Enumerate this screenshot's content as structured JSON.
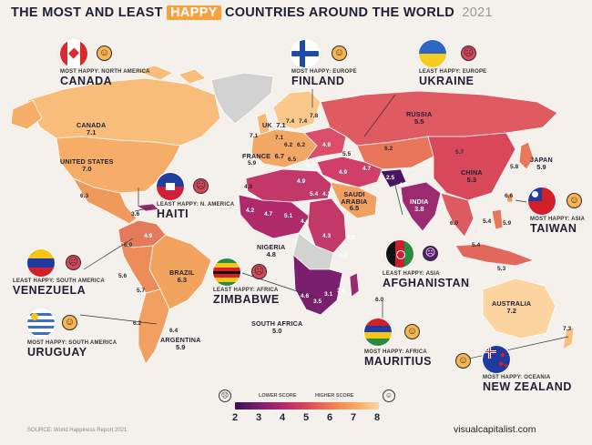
{
  "title": {
    "part1": "THE MOST AND LEAST",
    "highlight": "HAPPY",
    "part2": "COUNTRIES AROUND THE WORLD",
    "year": "2021"
  },
  "map_labels": {
    "canada": {
      "name": "CANADA",
      "score": "7.1"
    },
    "usa": {
      "name": "UNITED STATES",
      "score": "7.0"
    },
    "russia": {
      "name": "RUSSIA",
      "score": "5.5"
    },
    "china": {
      "name": "CHINA",
      "score": "5.3"
    },
    "japan": {
      "name": "JAPAN",
      "score": "5.9"
    },
    "india": {
      "name": "INDIA",
      "score": "3.8"
    },
    "saudi": {
      "name": "SAUDI ARABIA",
      "score": "6.5"
    },
    "nigeria": {
      "name": "NIGERIA",
      "score": "4.8"
    },
    "south_africa": {
      "name": "SOUTH AFRICA",
      "score": "5.0"
    },
    "brazil": {
      "name": "BRAZIL",
      "score": "6.3"
    },
    "argentina": {
      "name": "ARGENTINA",
      "score": "5.9"
    },
    "australia": {
      "name": "AUSTRALIA",
      "score": "7.2"
    },
    "uk": {
      "name": "UK",
      "score": "7.1"
    },
    "france": {
      "name": "FRANCE",
      "score": "6.7"
    }
  },
  "minor_scores": [
    {
      "id": "ireland",
      "v": "7.1"
    },
    {
      "id": "norway",
      "v": "7.4"
    },
    {
      "id": "sweden",
      "v": "7.4"
    },
    {
      "id": "finland",
      "v": "7.8"
    },
    {
      "id": "benelux",
      "v": "7.1"
    },
    {
      "id": "spain",
      "v": "5.9"
    },
    {
      "id": "italy",
      "v": "6.5"
    },
    {
      "id": "central-europe",
      "v": "6.2"
    },
    {
      "id": "eastern-europe",
      "v": "4.9"
    },
    {
      "id": "kazakhstan",
      "v": "6.2"
    },
    {
      "id": "mongolia",
      "v": "5.7"
    },
    {
      "id": "north-africa",
      "v": "4.9"
    },
    {
      "id": "west-africa-1",
      "v": "4.2"
    },
    {
      "id": "west-africa-2",
      "v": "4.7"
    },
    {
      "id": "west-africa-3",
      "v": "5.1"
    },
    {
      "id": "chad",
      "v": "4.4"
    },
    {
      "id": "sudan",
      "v": "5.4"
    },
    {
      "id": "east-africa-1",
      "v": "4.3"
    },
    {
      "id": "central-africa",
      "v": "4.3"
    },
    {
      "id": "east-africa-2",
      "v": "4.6"
    },
    {
      "id": "southern-africa-1",
      "v": "3.1"
    },
    {
      "id": "southern-africa-2",
      "v": "3.6"
    },
    {
      "id": "southern-africa-3",
      "v": "3.5"
    },
    {
      "id": "southern-africa-4",
      "v": "4.6"
    },
    {
      "id": "iran",
      "v": "4.7"
    },
    {
      "id": "afghanistan-map",
      "v": "2.5"
    },
    {
      "id": "pakistan",
      "v": "4.9"
    },
    {
      "id": "myanmar",
      "v": "6.0"
    },
    {
      "id": "vietnam",
      "v": "5.4"
    },
    {
      "id": "philippines",
      "v": "5.9"
    },
    {
      "id": "indonesia",
      "v": "5.3"
    },
    {
      "id": "malaysia",
      "v": "5.4"
    },
    {
      "id": "korea",
      "v": "5.8"
    },
    {
      "id": "taiwan-map",
      "v": "6.6"
    },
    {
      "id": "mexico",
      "v": "6.3"
    },
    {
      "id": "venezuela-map",
      "v": "4.9"
    },
    {
      "id": "colombia",
      "v": "6.0"
    },
    {
      "id": "peru",
      "v": "5.6"
    },
    {
      "id": "bolivia",
      "v": "5.7"
    },
    {
      "id": "chile",
      "v": "6.2"
    },
    {
      "id": "uruguay-map",
      "v": "6.4"
    },
    {
      "id": "mauritius-map",
      "v": "6.0"
    },
    {
      "id": "nz-map",
      "v": "7.3"
    },
    {
      "id": "haiti-map",
      "v": "3.6"
    },
    {
      "id": "egypt",
      "v": "4.3"
    },
    {
      "id": "arabia-2",
      "v": "4.9"
    },
    {
      "id": "sw-africa",
      "v": "4.9"
    },
    {
      "id": "eu-a",
      "v": "6.2"
    },
    {
      "id": "eu-b",
      "v": "4.9"
    },
    {
      "id": "eu-c",
      "v": "5.5"
    }
  ],
  "callouts": {
    "canada": {
      "caption": "MOST HAPPY: NORTH AMERICA",
      "country": "CANADA",
      "mood": "happy"
    },
    "finland": {
      "caption": "MOST HAPPY: EUROPE",
      "country": "FINLAND",
      "mood": "happy"
    },
    "ukraine": {
      "caption": "LEAST HAPPY: EUROPE",
      "country": "UKRAINE",
      "mood": "sad"
    },
    "haiti": {
      "caption": "LEAST HAPPY: N. AMERICA",
      "country": "HAITI",
      "mood": "sad"
    },
    "taiwan": {
      "caption": "MOST HAPPY: ASIA",
      "country": "TAIWAN",
      "mood": "happy"
    },
    "venezuela": {
      "caption": "LEAST HAPPY: SOUTH AMERICA",
      "country": "VENEZUELA",
      "mood": "sad"
    },
    "zimbabwe": {
      "caption": "LEAST HAPPY: AFRICA",
      "country": "ZIMBABWE",
      "mood": "sad"
    },
    "afghanistan": {
      "caption": "LEAST HAPPY: ASIA",
      "country": "AFGHANISTAN",
      "mood": "sad"
    },
    "uruguay": {
      "caption": "MOST HAPPY: SOUTH AMERICA",
      "country": "URUGUAY",
      "mood": "happy"
    },
    "mauritius": {
      "caption": "MOST HAPPY: AFRICA",
      "country": "MAURITIUS",
      "mood": "happy"
    },
    "new_zealand": {
      "caption": "MOST HAPPY: OCEANIA",
      "country": "NEW ZEALAND",
      "mood": "happy"
    }
  },
  "legend": {
    "low_label": "LOWER SCORE",
    "high_label": "HIGHER SCORE",
    "ticks": [
      "2",
      "3",
      "4",
      "5",
      "6",
      "7",
      "8"
    ],
    "colors": [
      "#3b0f55",
      "#7a1f6e",
      "#b02a6a",
      "#d9485a",
      "#ef7a55",
      "#f6a860",
      "#fbd4a0"
    ]
  },
  "source": "SOURCE: World Happiness Report 2021",
  "brand": "visualcapitalist.com"
}
